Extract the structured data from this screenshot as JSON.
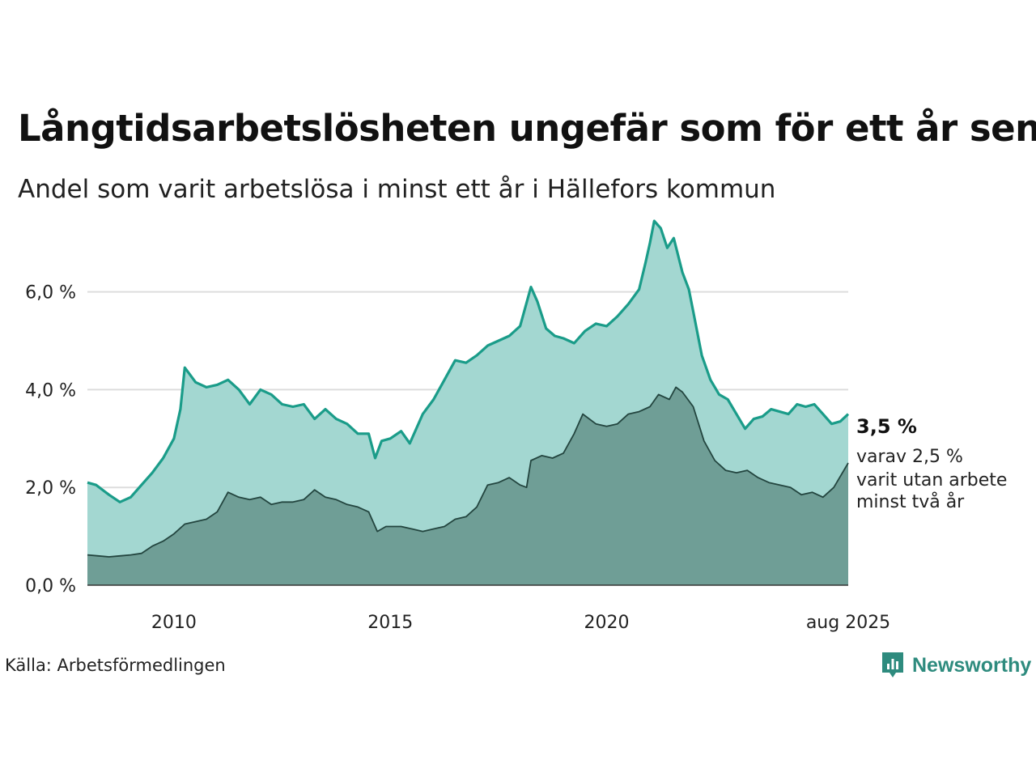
{
  "title": "Långtidsarbetslösheten ungefär som för ett år sen",
  "subtitle": "Andel som varit arbetslösa i minst ett år i Hällefors kommun",
  "source": "Källa: Arbetsförmedlingen",
  "brand": "Newsworthy",
  "colors": {
    "total_line": "#1a9c89",
    "total_fill": "#a3d7d1",
    "long_line": "#23453f",
    "long_fill": "#6f9e96",
    "grid": "#dddddd",
    "brand": "#2e8b7e"
  },
  "chart_data": {
    "type": "area",
    "ylim": [
      0,
      7.5
    ],
    "y_ticks": [
      0,
      2,
      4,
      6
    ],
    "y_tick_labels": [
      "0,0 %",
      "2,0 %",
      "4,0 %",
      "6,0 %"
    ],
    "x_range": [
      2008.0,
      2025.583
    ],
    "x_ticks": [
      2010,
      2015,
      2020,
      2025.583
    ],
    "x_tick_labels": [
      "2010",
      "2015",
      "2020",
      "aug 2025"
    ],
    "end_value_label": "3,5 %",
    "end_note": [
      "varav 2,5 %",
      "varit utan arbete",
      "minst två år"
    ],
    "series": [
      {
        "values": [
          [
            2008.0,
            2.1
          ],
          [
            2008.2,
            2.05
          ],
          [
            2008.5,
            1.85
          ],
          [
            2008.75,
            1.7
          ],
          [
            2009.0,
            1.8
          ],
          [
            2009.25,
            2.05
          ],
          [
            2009.5,
            2.3
          ],
          [
            2009.75,
            2.6
          ],
          [
            2010.0,
            3.0
          ],
          [
            2010.15,
            3.6
          ],
          [
            2010.25,
            4.45
          ],
          [
            2010.5,
            4.15
          ],
          [
            2010.75,
            4.05
          ],
          [
            2011.0,
            4.1
          ],
          [
            2011.25,
            4.2
          ],
          [
            2011.5,
            4.0
          ],
          [
            2011.75,
            3.7
          ],
          [
            2012.0,
            4.0
          ],
          [
            2012.25,
            3.9
          ],
          [
            2012.5,
            3.7
          ],
          [
            2012.75,
            3.65
          ],
          [
            2013.0,
            3.7
          ],
          [
            2013.25,
            3.4
          ],
          [
            2013.5,
            3.6
          ],
          [
            2013.75,
            3.4
          ],
          [
            2014.0,
            3.3
          ],
          [
            2014.25,
            3.1
          ],
          [
            2014.5,
            3.1
          ],
          [
            2014.65,
            2.6
          ],
          [
            2014.8,
            2.95
          ],
          [
            2015.0,
            3.0
          ],
          [
            2015.25,
            3.15
          ],
          [
            2015.45,
            2.9
          ],
          [
            2015.75,
            3.5
          ],
          [
            2016.0,
            3.8
          ],
          [
            2016.25,
            4.2
          ],
          [
            2016.5,
            4.6
          ],
          [
            2016.75,
            4.55
          ],
          [
            2017.0,
            4.7
          ],
          [
            2017.25,
            4.9
          ],
          [
            2017.5,
            5.0
          ],
          [
            2017.75,
            5.1
          ],
          [
            2018.0,
            5.3
          ],
          [
            2018.25,
            6.1
          ],
          [
            2018.4,
            5.8
          ],
          [
            2018.6,
            5.25
          ],
          [
            2018.8,
            5.1
          ],
          [
            2019.0,
            5.05
          ],
          [
            2019.25,
            4.95
          ],
          [
            2019.5,
            5.2
          ],
          [
            2019.75,
            5.35
          ],
          [
            2020.0,
            5.3
          ],
          [
            2020.25,
            5.5
          ],
          [
            2020.5,
            5.75
          ],
          [
            2020.75,
            6.05
          ],
          [
            2020.9,
            6.6
          ],
          [
            2021.0,
            7.0
          ],
          [
            2021.1,
            7.45
          ],
          [
            2021.25,
            7.3
          ],
          [
            2021.4,
            6.9
          ],
          [
            2021.55,
            7.1
          ],
          [
            2021.75,
            6.4
          ],
          [
            2021.9,
            6.05
          ],
          [
            2022.0,
            5.6
          ],
          [
            2022.2,
            4.7
          ],
          [
            2022.4,
            4.2
          ],
          [
            2022.6,
            3.9
          ],
          [
            2022.8,
            3.8
          ],
          [
            2023.0,
            3.5
          ],
          [
            2023.2,
            3.2
          ],
          [
            2023.4,
            3.4
          ],
          [
            2023.6,
            3.45
          ],
          [
            2023.8,
            3.6
          ],
          [
            2024.0,
            3.55
          ],
          [
            2024.2,
            3.5
          ],
          [
            2024.4,
            3.7
          ],
          [
            2024.6,
            3.65
          ],
          [
            2024.8,
            3.7
          ],
          [
            2025.0,
            3.5
          ],
          [
            2025.2,
            3.3
          ],
          [
            2025.4,
            3.35
          ],
          [
            2025.583,
            3.5
          ]
        ]
      },
      {
        "values": [
          [
            2008.0,
            0.62
          ],
          [
            2008.25,
            0.6
          ],
          [
            2008.5,
            0.58
          ],
          [
            2008.75,
            0.6
          ],
          [
            2009.0,
            0.62
          ],
          [
            2009.25,
            0.65
          ],
          [
            2009.5,
            0.8
          ],
          [
            2009.75,
            0.9
          ],
          [
            2010.0,
            1.05
          ],
          [
            2010.25,
            1.25
          ],
          [
            2010.5,
            1.3
          ],
          [
            2010.75,
            1.35
          ],
          [
            2011.0,
            1.5
          ],
          [
            2011.25,
            1.9
          ],
          [
            2011.5,
            1.8
          ],
          [
            2011.75,
            1.75
          ],
          [
            2012.0,
            1.8
          ],
          [
            2012.25,
            1.65
          ],
          [
            2012.5,
            1.7
          ],
          [
            2012.75,
            1.7
          ],
          [
            2013.0,
            1.75
          ],
          [
            2013.25,
            1.95
          ],
          [
            2013.5,
            1.8
          ],
          [
            2013.75,
            1.75
          ],
          [
            2014.0,
            1.65
          ],
          [
            2014.25,
            1.6
          ],
          [
            2014.5,
            1.5
          ],
          [
            2014.7,
            1.1
          ],
          [
            2014.9,
            1.2
          ],
          [
            2015.0,
            1.2
          ],
          [
            2015.25,
            1.2
          ],
          [
            2015.5,
            1.15
          ],
          [
            2015.75,
            1.1
          ],
          [
            2016.0,
            1.15
          ],
          [
            2016.25,
            1.2
          ],
          [
            2016.5,
            1.35
          ],
          [
            2016.75,
            1.4
          ],
          [
            2017.0,
            1.6
          ],
          [
            2017.25,
            2.05
          ],
          [
            2017.5,
            2.1
          ],
          [
            2017.75,
            2.2
          ],
          [
            2018.0,
            2.05
          ],
          [
            2018.15,
            2.0
          ],
          [
            2018.25,
            2.55
          ],
          [
            2018.5,
            2.65
          ],
          [
            2018.75,
            2.6
          ],
          [
            2019.0,
            2.7
          ],
          [
            2019.25,
            3.1
          ],
          [
            2019.45,
            3.5
          ],
          [
            2019.75,
            3.3
          ],
          [
            2020.0,
            3.25
          ],
          [
            2020.25,
            3.3
          ],
          [
            2020.5,
            3.5
          ],
          [
            2020.75,
            3.55
          ],
          [
            2021.0,
            3.65
          ],
          [
            2021.2,
            3.9
          ],
          [
            2021.45,
            3.8
          ],
          [
            2021.6,
            4.05
          ],
          [
            2021.75,
            3.95
          ],
          [
            2022.0,
            3.65
          ],
          [
            2022.25,
            2.95
          ],
          [
            2022.5,
            2.55
          ],
          [
            2022.75,
            2.35
          ],
          [
            2023.0,
            2.3
          ],
          [
            2023.25,
            2.35
          ],
          [
            2023.5,
            2.2
          ],
          [
            2023.75,
            2.1
          ],
          [
            2024.0,
            2.05
          ],
          [
            2024.25,
            2.0
          ],
          [
            2024.5,
            1.85
          ],
          [
            2024.75,
            1.9
          ],
          [
            2025.0,
            1.8
          ],
          [
            2025.25,
            2.0
          ],
          [
            2025.583,
            2.5
          ]
        ]
      }
    ]
  }
}
